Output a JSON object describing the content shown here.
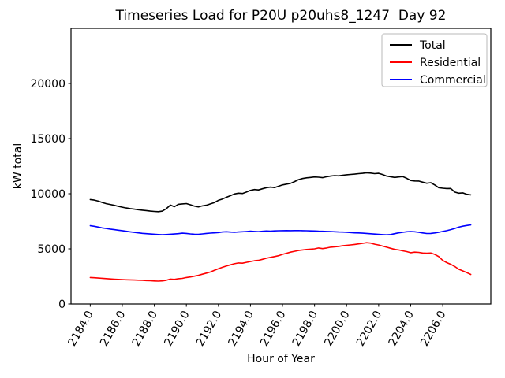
{
  "chart_data": {
    "type": "line",
    "title": "Timeseries Load for P20U p20uhs8_1247  Day 92",
    "xlabel": "Hour of Year",
    "ylabel": "kW total",
    "xlim": [
      2182.8,
      2209.0
    ],
    "ylim": [
      0,
      25000
    ],
    "xticks": [
      2184,
      2186,
      2188,
      2190,
      2192,
      2194,
      2196,
      2198,
      2200,
      2202,
      2204,
      2206
    ],
    "xtick_labels": [
      "2184.0",
      "2186.0",
      "2188.0",
      "2190.0",
      "2192.0",
      "2194.0",
      "2196.0",
      "2198.0",
      "2200.0",
      "2202.0",
      "2204.0",
      "2206.0"
    ],
    "xtick_rotation_deg": 60,
    "yticks": [
      0,
      5000,
      10000,
      15000,
      20000
    ],
    "ytick_labels": [
      "0",
      "5000",
      "10000",
      "15000",
      "20000"
    ],
    "grid": false,
    "legend_position": "upper right",
    "x_start": 2184.0,
    "x_step": 0.25,
    "series": [
      {
        "name": "Total",
        "color": "#000000",
        "values": [
          9470,
          9420,
          9330,
          9210,
          9100,
          9030,
          8950,
          8860,
          8780,
          8710,
          8650,
          8600,
          8550,
          8510,
          8470,
          8420,
          8390,
          8370,
          8420,
          8640,
          8970,
          8820,
          9040,
          9080,
          9110,
          9000,
          8880,
          8810,
          8900,
          8960,
          9080,
          9200,
          9400,
          9520,
          9680,
          9820,
          9980,
          10050,
          10020,
          10150,
          10300,
          10380,
          10340,
          10450,
          10550,
          10600,
          10560,
          10680,
          10800,
          10870,
          10940,
          11100,
          11280,
          11380,
          11440,
          11480,
          11520,
          11500,
          11460,
          11540,
          11600,
          11640,
          11620,
          11680,
          11720,
          11750,
          11780,
          11820,
          11850,
          11900,
          11870,
          11820,
          11850,
          11740,
          11600,
          11540,
          11480,
          11520,
          11560,
          11400,
          11200,
          11160,
          11150,
          11050,
          10950,
          11000,
          10800,
          10550,
          10500,
          10470,
          10480,
          10150,
          10050,
          10080,
          9950,
          9900
        ]
      },
      {
        "name": "Residential",
        "color": "#ff0000",
        "values": [
          2400,
          2380,
          2350,
          2325,
          2300,
          2270,
          2250,
          2230,
          2210,
          2195,
          2185,
          2170,
          2155,
          2140,
          2125,
          2105,
          2085,
          2070,
          2090,
          2150,
          2260,
          2230,
          2290,
          2320,
          2400,
          2450,
          2520,
          2600,
          2700,
          2800,
          2900,
          3050,
          3200,
          3330,
          3450,
          3550,
          3650,
          3720,
          3700,
          3780,
          3850,
          3920,
          3960,
          4050,
          4150,
          4230,
          4300,
          4380,
          4500,
          4600,
          4700,
          4780,
          4850,
          4900,
          4940,
          4970,
          5000,
          5080,
          5020,
          5080,
          5150,
          5180,
          5220,
          5280,
          5320,
          5360,
          5400,
          5450,
          5500,
          5560,
          5520,
          5420,
          5350,
          5250,
          5150,
          5050,
          4950,
          4900,
          4820,
          4750,
          4650,
          4700,
          4680,
          4620,
          4600,
          4620,
          4500,
          4300,
          3950,
          3750,
          3600,
          3400,
          3150,
          3000,
          2850,
          2680
        ]
      },
      {
        "name": "Commercial",
        "color": "#0000ff",
        "values": [
          7100,
          7050,
          6980,
          6900,
          6850,
          6790,
          6740,
          6690,
          6650,
          6590,
          6540,
          6490,
          6450,
          6410,
          6380,
          6350,
          6330,
          6300,
          6280,
          6300,
          6330,
          6350,
          6380,
          6420,
          6400,
          6360,
          6330,
          6320,
          6360,
          6400,
          6430,
          6450,
          6480,
          6530,
          6550,
          6520,
          6500,
          6530,
          6550,
          6570,
          6600,
          6580,
          6560,
          6590,
          6620,
          6600,
          6630,
          6640,
          6650,
          6660,
          6650,
          6660,
          6660,
          6650,
          6640,
          6630,
          6620,
          6600,
          6590,
          6580,
          6570,
          6550,
          6530,
          6520,
          6510,
          6480,
          6450,
          6440,
          6420,
          6400,
          6370,
          6340,
          6320,
          6290,
          6270,
          6300,
          6380,
          6450,
          6500,
          6550,
          6570,
          6550,
          6500,
          6440,
          6390,
          6400,
          6440,
          6500,
          6580,
          6650,
          6740,
          6850,
          6970,
          7060,
          7120,
          7170
        ]
      }
    ]
  }
}
